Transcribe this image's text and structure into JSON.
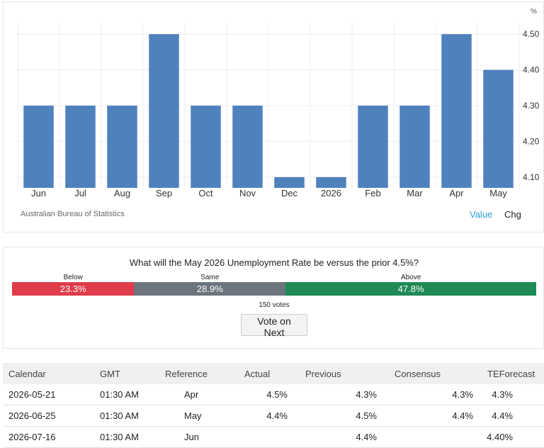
{
  "chart_data": {
    "type": "bar",
    "categories": [
      "Jun",
      "Jul",
      "Aug",
      "Sep",
      "Oct",
      "Nov",
      "Dec",
      "2026",
      "Feb",
      "Mar",
      "Apr",
      "May"
    ],
    "values": [
      4.3,
      4.3,
      4.3,
      4.5,
      4.3,
      4.3,
      4.1,
      4.1,
      4.3,
      4.3,
      4.5,
      4.4
    ],
    "ylim": [
      4.07,
      4.53
    ],
    "yticks": [
      "4.10",
      "4.20",
      "4.30",
      "4.40",
      "4.50"
    ],
    "ytick_values": [
      4.1,
      4.2,
      4.3,
      4.4,
      4.5
    ],
    "yunit": "%",
    "bar_color": "#4f81bd",
    "grid": true,
    "source": "Australian Bureau of Statistics",
    "toggle": {
      "value_label": "Value",
      "chg_label": "Chg"
    }
  },
  "poll": {
    "question": "What will the May 2026 Unemployment Rate be versus the prior 4.5%?",
    "segments": [
      {
        "label": "Below",
        "percent_text": "23.3%",
        "share": 23.3,
        "color": "#e03c4a"
      },
      {
        "label": "Same",
        "percent_text": "28.9%",
        "share": 28.9,
        "color": "#6c757d"
      },
      {
        "label": "Above",
        "percent_text": "47.8%",
        "share": 47.8,
        "color": "#1e8a55"
      }
    ],
    "votes": "150 votes",
    "vote_button": "Vote on Next"
  },
  "calendar": {
    "headers": [
      "Calendar",
      "GMT",
      "Reference",
      "Actual",
      "Previous",
      "Consensus",
      "TEForecast"
    ],
    "rows": [
      [
        "2026-05-21",
        "01:30 AM",
        "Apr",
        "4.5%",
        "4.3%",
        "4.3%",
        "4.3%"
      ],
      [
        "2026-06-25",
        "01:30 AM",
        "May",
        "4.4%",
        "4.5%",
        "4.4%",
        "4.4%"
      ],
      [
        "2026-07-16",
        "01:30 AM",
        "Jun",
        "",
        "4.4%",
        "",
        "4.40%"
      ]
    ]
  }
}
